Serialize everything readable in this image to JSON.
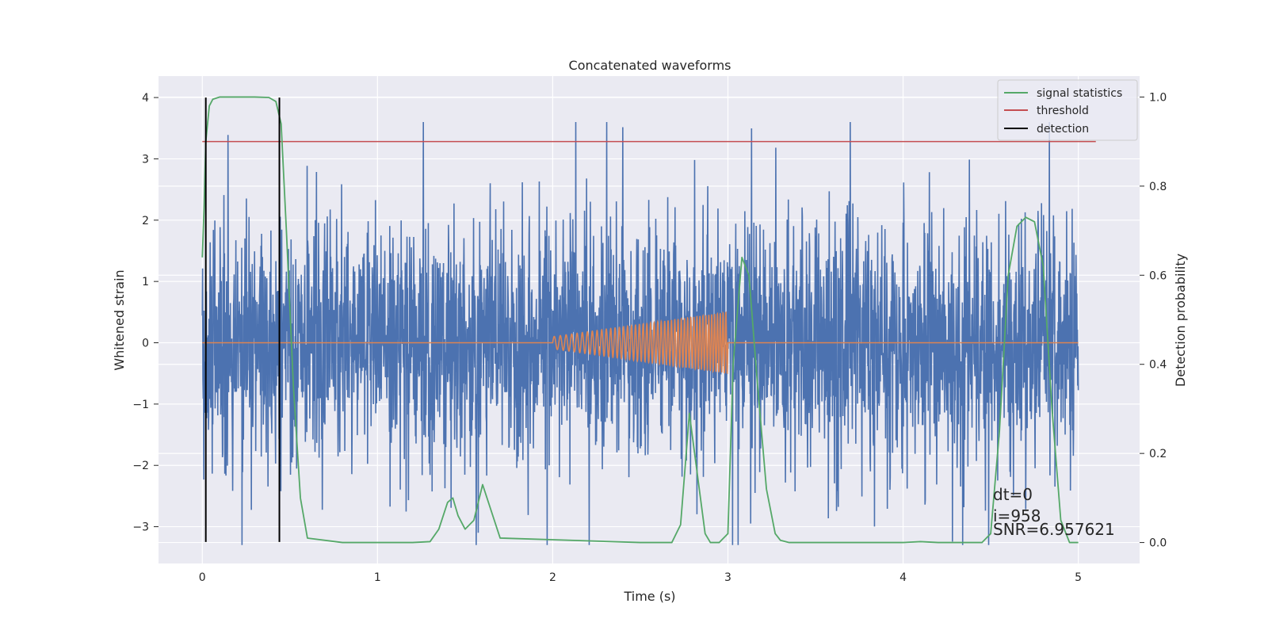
{
  "chart_data": {
    "type": "line",
    "title": "Concatenated waveforms",
    "xlabel": "Time (s)",
    "ylabel": "Whitened strain",
    "ylabel_right": "Detection probability",
    "xlim": [
      -0.25,
      5.35
    ],
    "ylim": [
      -3.6,
      4.35
    ],
    "ylim_right": [
      -0.047,
      1.047
    ],
    "xticks": [
      0,
      1,
      2,
      3,
      4,
      5
    ],
    "yticks": [
      -3,
      -2,
      -1,
      0,
      1,
      2,
      3,
      4
    ],
    "yticks_right": [
      0.0,
      0.2,
      0.4,
      0.6,
      0.8,
      1.0
    ],
    "xtick_labels": [
      "0",
      "1",
      "2",
      "3",
      "4",
      "5"
    ],
    "ytick_labels": [
      "−3",
      "−2",
      "−1",
      "0",
      "1",
      "2",
      "3",
      "4"
    ],
    "ytick_right_labels": [
      "0.0",
      "0.2",
      "0.4",
      "0.6",
      "0.8",
      "1.0"
    ],
    "grid": true,
    "legend_position": "top-right",
    "legend": [
      "signal statistics",
      "threshold",
      "detection"
    ],
    "series": [
      {
        "name": "strain",
        "color": "#4c72b0",
        "x_range": [
          0,
          5
        ],
        "amplitude_range": [
          -3.3,
          3.6
        ]
      },
      {
        "name": "injected signal",
        "color": "#dd8452",
        "x_range": [
          2,
          3
        ],
        "amplitude_range": [
          -0.5,
          0.5
        ]
      },
      {
        "name": "signal statistics",
        "color": "#55a868",
        "axis": "right",
        "x": [
          0.0,
          0.01,
          0.02,
          0.04,
          0.06,
          0.1,
          0.2,
          0.3,
          0.38,
          0.42,
          0.45,
          0.48,
          0.52,
          0.56,
          0.6,
          0.8,
          1.2,
          1.3,
          1.35,
          1.4,
          1.43,
          1.46,
          1.5,
          1.55,
          1.6,
          1.65,
          1.7,
          2.5,
          2.68,
          2.73,
          2.78,
          2.83,
          2.87,
          2.9,
          2.95,
          3.0,
          3.03,
          3.08,
          3.12,
          3.17,
          3.22,
          3.27,
          3.3,
          3.35,
          3.5,
          4.0,
          4.1,
          4.2,
          4.45,
          4.5,
          4.55,
          4.6,
          4.65,
          4.7,
          4.75,
          4.8,
          4.85,
          4.9,
          4.95,
          5.0
        ],
        "y": [
          0.64,
          0.75,
          0.9,
          0.98,
          0.995,
          1.0,
          1.0,
          1.0,
          0.999,
          0.99,
          0.94,
          0.7,
          0.35,
          0.1,
          0.01,
          0.0,
          0.0,
          0.002,
          0.03,
          0.09,
          0.1,
          0.06,
          0.03,
          0.05,
          0.13,
          0.07,
          0.01,
          0.0,
          0.0,
          0.04,
          0.29,
          0.14,
          0.02,
          0.0,
          0.0,
          0.02,
          0.4,
          0.64,
          0.6,
          0.35,
          0.12,
          0.02,
          0.005,
          0.0,
          0.0,
          0.0,
          0.002,
          0.0,
          0.0,
          0.02,
          0.25,
          0.6,
          0.71,
          0.73,
          0.72,
          0.62,
          0.3,
          0.05,
          0.0,
          0.0
        ]
      },
      {
        "name": "threshold",
        "color": "#c44e52",
        "axis": "right",
        "x": [
          0.0,
          5.1
        ],
        "y": [
          0.9,
          0.9
        ]
      },
      {
        "name": "detection",
        "color": "#000000",
        "x_positions": [
          0.02,
          0.44
        ],
        "y_range": [
          -3.25,
          4.0
        ]
      }
    ],
    "annotations": [
      "dt=0",
      "i=958",
      "SNR=6.957621"
    ]
  }
}
